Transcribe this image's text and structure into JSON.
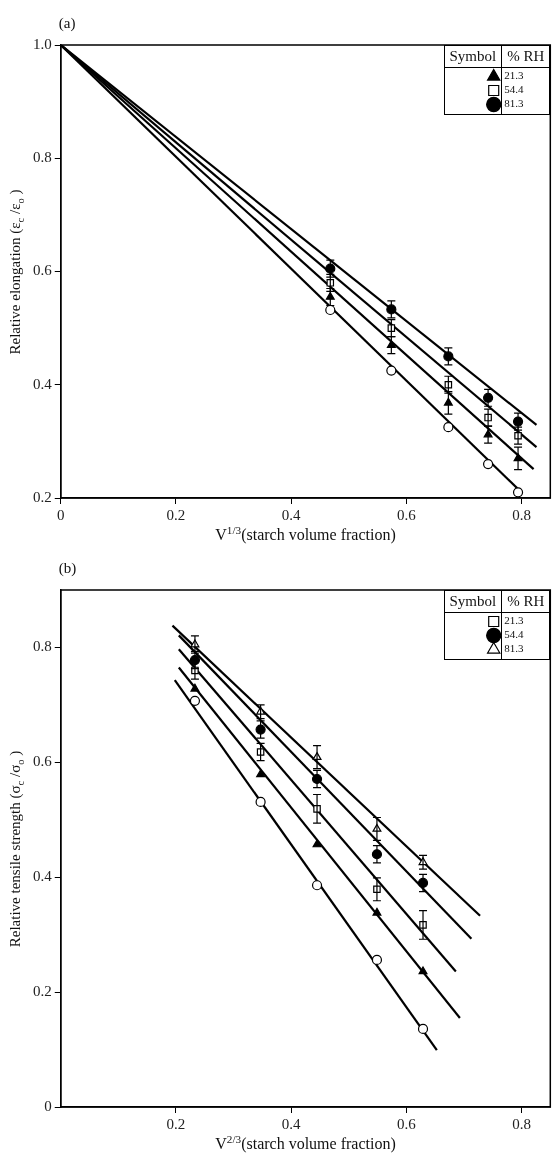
{
  "chart_data": [
    {
      "type": "scatter",
      "title": "(a)",
      "xlabel": "V$^{1/3}$(starch volume fraction)",
      "ylabel": "Relative elongation (ε$_{c}$ /ε$_{o}$ )",
      "legend_title": "% RH",
      "annotations": [
        "Symbol"
      ],
      "legend": "top right",
      "xlim": [
        0,
        0.85
      ],
      "xticks": [
        0,
        0.2,
        0.4,
        0.6,
        0.8
      ],
      "ylim": [
        0.2,
        1.0
      ],
      "yticks": [
        0.2,
        0.4,
        0.6,
        0.8,
        {
          "value": 1.0,
          "label": "1.0"
        }
      ],
      "series": [
        {
          "type": "scatter",
          "name": "21.3",
          "color": "#000000",
          "marker": "triangle",
          "x": [
            0.468,
            0.574,
            0.673,
            0.742,
            0.794
          ],
          "values": [
            0.555,
            0.47,
            0.368,
            0.312,
            0.27
          ],
          "errors": [
            0.015,
            0.015,
            0.02,
            0.015,
            0.02
          ]
        },
        {
          "type": "scatter",
          "name": "54.4",
          "color": "#ffffff",
          "marker": "square",
          "x": [
            0.468,
            0.574,
            0.673,
            0.742,
            0.794
          ],
          "values": [
            0.58,
            0.5,
            0.4,
            0.342,
            0.31
          ],
          "errors": [
            0.015,
            0.015,
            0.015,
            0.015,
            0.015
          ]
        },
        {
          "type": "scatter",
          "name": "81.3",
          "color": "#000000",
          "marker": "circle",
          "x": [
            0.468,
            0.574,
            0.673,
            0.742,
            0.794
          ],
          "values": [
            0.605,
            0.533,
            0.45,
            0.377,
            0.335
          ],
          "errors": [
            0.015,
            0.015,
            0.015,
            0.015,
            0.015
          ]
        },
        {
          "type": "scatter",
          "color": "#ffffff",
          "marker": "circle",
          "x": [
            0.468,
            0.574,
            0.673,
            0.742,
            0.794
          ],
          "values": [
            0.532,
            0.425,
            0.325,
            0.26,
            0.21
          ]
        },
        {
          "type": "line",
          "color": "#000000",
          "x": [
            0,
            0.826
          ],
          "values": [
            1.0,
            0.329
          ]
        },
        {
          "type": "line",
          "color": "#000000",
          "x": [
            0,
            0.826
          ],
          "values": [
            1.0,
            0.29
          ]
        },
        {
          "type": "line",
          "color": "#000000",
          "x": [
            0,
            0.821
          ],
          "values": [
            1.0,
            0.251
          ]
        },
        {
          "type": "line",
          "color": "#000000",
          "x": [
            0,
            0.8
          ],
          "values": [
            1.0,
            0.21
          ]
        }
      ]
    },
    {
      "type": "scatter",
      "title": "(b)",
      "xlabel": "V$^{2/3}$(starch volume fraction)",
      "ylabel": "Relative tensile strength (σ$_{c}$ /σ$_{o}$ )",
      "legend_title": "% RH",
      "annotations": [
        "Symbol"
      ],
      "legend": "top right",
      "xlim": [
        0,
        0.85
      ],
      "xticks": [
        0.2,
        0.4,
        0.6,
        0.8
      ],
      "ylim": [
        0,
        0.9
      ],
      "yticks": [
        0,
        0.2,
        0.4,
        0.6,
        0.8
      ],
      "series": [
        {
          "type": "scatter",
          "name": "21.3",
          "color": "#ffffff",
          "marker": "square",
          "x": [
            0.233,
            0.347,
            0.445,
            0.549,
            0.629
          ],
          "values": [
            0.76,
            0.618,
            0.519,
            0.379,
            0.317
          ],
          "errors": [
            0.015,
            0.015,
            0.025,
            0.02,
            0.025
          ]
        },
        {
          "type": "scatter",
          "name": "54.4",
          "color": "#000000",
          "marker": "circle",
          "x": [
            0.233,
            0.347,
            0.445,
            0.549,
            0.629
          ],
          "values": [
            0.778,
            0.657,
            0.571,
            0.44,
            0.39
          ],
          "errors": [
            0.015,
            0.015,
            0.015,
            0.015,
            0.015
          ]
        },
        {
          "type": "scatter",
          "name": "81.3",
          "color": "#ffffff",
          "marker": "triangle",
          "x": [
            0.233,
            0.347,
            0.445,
            0.549,
            0.629
          ],
          "values": [
            0.805,
            0.688,
            0.609,
            0.484,
            0.426
          ],
          "errors": [
            0.015,
            0.012,
            0.02,
            0.02,
            0.012
          ]
        },
        {
          "type": "scatter",
          "color": "#000000",
          "marker": "triangle",
          "x": [
            0.233,
            0.347,
            0.445,
            0.549,
            0.629
          ],
          "values": [
            0.728,
            0.579,
            0.457,
            0.338,
            0.236
          ]
        },
        {
          "type": "scatter",
          "color": "#ffffff",
          "marker": "circle",
          "x": [
            0.233,
            0.347,
            0.445,
            0.549,
            0.629
          ],
          "values": [
            0.707,
            0.531,
            0.386,
            0.256,
            0.136
          ]
        },
        {
          "type": "line",
          "color": "#000000",
          "x": [
            0.194,
            0.728
          ],
          "values": [
            0.838,
            0.333
          ]
        },
        {
          "type": "line",
          "color": "#000000",
          "x": [
            0.205,
            0.713
          ],
          "values": [
            0.821,
            0.293
          ]
        },
        {
          "type": "line",
          "color": "#000000",
          "x": [
            0.205,
            0.686
          ],
          "values": [
            0.797,
            0.236
          ]
        },
        {
          "type": "line",
          "color": "#000000",
          "x": [
            0.205,
            0.693
          ],
          "values": [
            0.765,
            0.155
          ]
        },
        {
          "type": "line",
          "color": "#000000",
          "x": [
            0.198,
            0.653
          ],
          "values": [
            0.743,
            0.099
          ]
        }
      ]
    }
  ]
}
